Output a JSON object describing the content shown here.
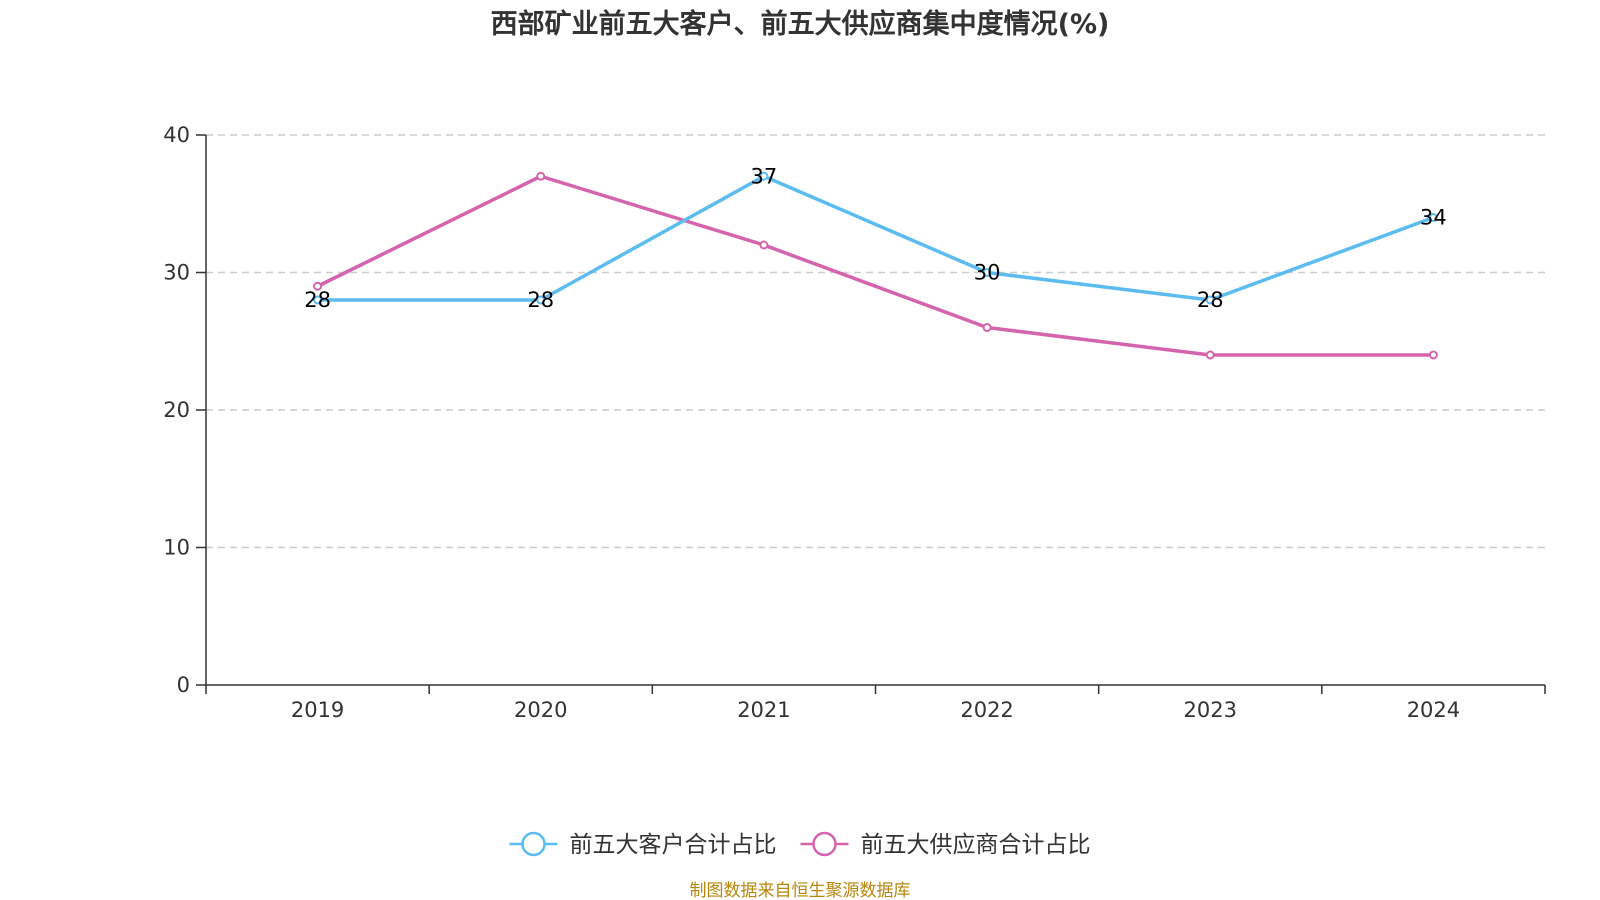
{
  "chart_data": {
    "type": "line",
    "title": "西部矿业前五大客户、前五大供应商集中度情况(%)",
    "categories": [
      "2019",
      "2020",
      "2021",
      "2022",
      "2023",
      "2024"
    ],
    "series": [
      {
        "name": "前五大客户合计占比",
        "values": [
          28,
          28,
          37,
          30,
          28,
          34
        ],
        "color": "#5bbcf0",
        "labeled": true
      },
      {
        "name": "前五大供应商合计占比",
        "values": [
          29,
          37,
          32,
          26,
          24,
          24
        ],
        "color": "#d563ad",
        "labeled": false
      }
    ],
    "ylim": [
      0,
      40
    ],
    "yticks": [
      0,
      10,
      20,
      30,
      40
    ],
    "xlabel": "",
    "ylabel": "",
    "grid": true,
    "legend": "bottom-center"
  },
  "source_text": "制图数据来自恒生聚源数据库",
  "source_color": "#b8860b"
}
